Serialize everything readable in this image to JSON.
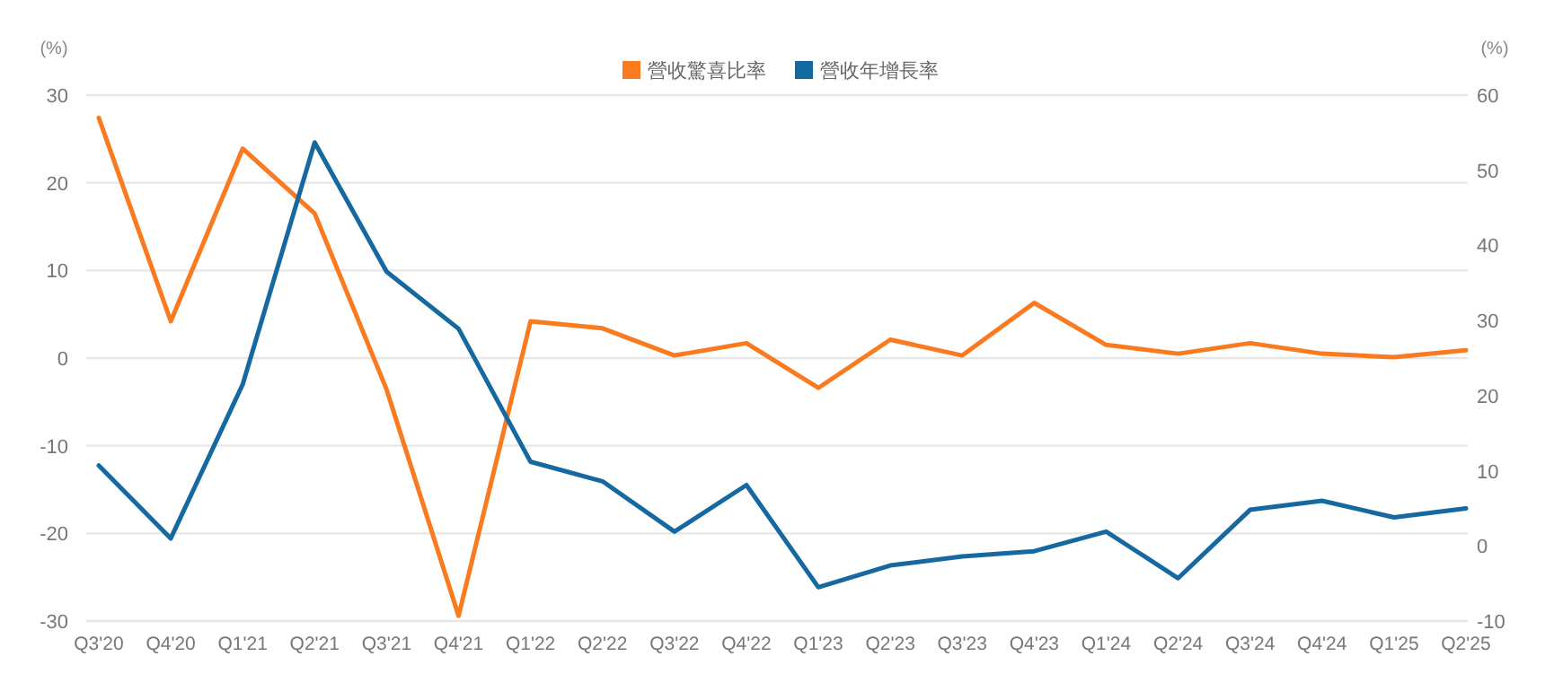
{
  "chart_data": {
    "type": "line",
    "ylabel": "(%)",
    "y2label": "(%)",
    "categories": [
      "Q3'20",
      "Q4'20",
      "Q1'21",
      "Q2'21",
      "Q3'21",
      "Q4'21",
      "Q1'22",
      "Q2'22",
      "Q3'22",
      "Q4'22",
      "Q1'23",
      "Q2'23",
      "Q3'23",
      "Q4'23",
      "Q1'24",
      "Q2'24",
      "Q3'24",
      "Q4'24",
      "Q1'25",
      "Q2'25"
    ],
    "series": [
      {
        "name": "營收驚喜比率",
        "color": "#f97a1f",
        "values": [
          27.4,
          4.2,
          23.9,
          16.5,
          -3.6,
          -29.4,
          4.2,
          3.4,
          0.3,
          1.7,
          -3.4,
          2.1,
          0.3,
          6.3,
          1.5,
          0.5,
          1.7,
          0.5,
          0.1,
          0.9
        ]
      },
      {
        "name": "營收年增長率",
        "color": "#1569a0",
        "axis": "y2",
        "values": [
          10.7,
          1.0,
          21.5,
          53.7,
          36.5,
          28.9,
          11.2,
          8.6,
          1.9,
          8.1,
          -5.5,
          -2.6,
          -1.4,
          -0.7,
          1.9,
          -4.3,
          4.8,
          6.0,
          3.8,
          5.0
        ]
      }
    ],
    "ylim": [
      -30,
      30
    ],
    "yticks": [
      -30,
      -20,
      -10,
      0,
      10,
      20,
      30
    ],
    "y2lim": [
      -10,
      60
    ],
    "y2ticks": [
      -10,
      0,
      10,
      20,
      30,
      40,
      50,
      60
    ],
    "grid": "y",
    "legend": "top",
    "marker": "none",
    "line_style": "solid"
  }
}
